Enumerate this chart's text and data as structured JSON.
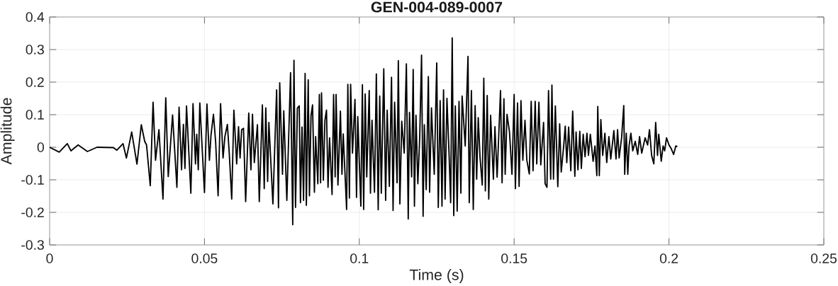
{
  "chart_data": {
    "type": "line",
    "title": "GEN-004-089-0007",
    "xlabel": "Time (s)",
    "ylabel": "Amplitude",
    "color": "#000000",
    "line_style": "solid",
    "grid": true,
    "xlim": [
      0,
      0.25
    ],
    "ylim": [
      -0.3,
      0.4
    ],
    "xticks": [
      0,
      0.05,
      0.1,
      0.15,
      0.2,
      0.25
    ],
    "yticks": [
      -0.3,
      -0.2,
      -0.1,
      0,
      0.1,
      0.2,
      0.3,
      0.4
    ],
    "x": [
      0,
      0.0031,
      0.0057,
      0.0069,
      0.0092,
      0.0122,
      0.0153,
      0.0206,
      0.0217,
      0.0237,
      0.0248,
      0.0265,
      0.0282,
      0.0296,
      0.0307,
      0.0313,
      0.0325,
      0.0334,
      0.0342,
      0.0353,
      0.0366,
      0.0375,
      0.0383,
      0.0397,
      0.0411,
      0.0418,
      0.0426,
      0.0432,
      0.0437,
      0.0442,
      0.0456,
      0.0463,
      0.0471,
      0.0475,
      0.048,
      0.0485,
      0.05,
      0.0508,
      0.0516,
      0.0521,
      0.0529,
      0.0536,
      0.0544,
      0.0552,
      0.056,
      0.0566,
      0.0574,
      0.058,
      0.0588,
      0.0595,
      0.0604,
      0.061,
      0.0615,
      0.062,
      0.0626,
      0.0633,
      0.0643,
      0.065,
      0.0655,
      0.0661,
      0.0671,
      0.0677,
      0.0687,
      0.0693,
      0.0698,
      0.0704,
      0.0708,
      0.0721,
      0.0733,
      0.0739,
      0.0743,
      0.0752,
      0.0756,
      0.0766,
      0.0778,
      0.0785,
      0.0789,
      0.0794,
      0.08,
      0.0806,
      0.081,
      0.0815,
      0.082,
      0.0825,
      0.0829,
      0.0835,
      0.0839,
      0.0844,
      0.0849,
      0.0855,
      0.0859,
      0.0866,
      0.0871,
      0.0875,
      0.0878,
      0.0884,
      0.0889,
      0.0894,
      0.0899,
      0.0904,
      0.0912,
      0.0917,
      0.0922,
      0.0925,
      0.0931,
      0.0939,
      0.0944,
      0.0948,
      0.0959,
      0.0963,
      0.0968,
      0.0972,
      0.0978,
      0.0986,
      0.0991,
      0.0995,
      0.1005,
      0.101,
      0.1014,
      0.1019,
      0.1024,
      0.1032,
      0.1036,
      0.1041,
      0.1049,
      0.1055,
      0.1061,
      0.1066,
      0.1071,
      0.1079,
      0.1085,
      0.109,
      0.1097,
      0.1104,
      0.1109,
      0.1114,
      0.1122,
      0.1126,
      0.1131,
      0.1137,
      0.1145,
      0.1152,
      0.1158,
      0.1162,
      0.1169,
      0.1174,
      0.1178,
      0.1183,
      0.1189,
      0.1195,
      0.1201,
      0.1206,
      0.121,
      0.1216,
      0.1223,
      0.1227,
      0.1233,
      0.1242,
      0.125,
      0.1255,
      0.1261,
      0.1267,
      0.1272,
      0.1277,
      0.1283,
      0.129,
      0.1295,
      0.13,
      0.1305,
      0.131,
      0.1316,
      0.1322,
      0.1328,
      0.1332,
      0.1342,
      0.1351,
      0.1355,
      0.1362,
      0.1368,
      0.1374,
      0.1379,
      0.1384,
      0.139,
      0.1397,
      0.1402,
      0.1407,
      0.1413,
      0.1418,
      0.1424,
      0.1433,
      0.1438,
      0.1445,
      0.1456,
      0.1461,
      0.1467,
      0.1471,
      0.1477,
      0.1485,
      0.1493,
      0.15,
      0.1504,
      0.1511,
      0.1516,
      0.1522,
      0.1528,
      0.1535,
      0.1541,
      0.1549,
      0.1555,
      0.1561,
      0.1568,
      0.1573,
      0.158,
      0.1586,
      0.1595,
      0.16,
      0.1606,
      0.1611,
      0.1618,
      0.1622,
      0.1627,
      0.1633,
      0.1641,
      0.1647,
      0.1652,
      0.166,
      0.1665,
      0.167,
      0.1676,
      0.1683,
      0.1689,
      0.1696,
      0.17,
      0.1706,
      0.1712,
      0.1717,
      0.1723,
      0.1729,
      0.1735,
      0.174,
      0.1746,
      0.1755,
      0.1761,
      0.1767,
      0.177,
      0.1775,
      0.178,
      0.1786,
      0.1793,
      0.1799,
      0.1806,
      0.1812,
      0.1822,
      0.1829,
      0.1834,
      0.1839,
      0.1847,
      0.1854,
      0.1857,
      0.1862,
      0.1867,
      0.1871,
      0.1877,
      0.1883,
      0.1891,
      0.1899,
      0.1905,
      0.1912,
      0.1923,
      0.1931,
      0.1937,
      0.1944,
      0.1951,
      0.1957,
      0.1963,
      0.1967,
      0.1975,
      0.1981,
      0.1986,
      0.1992,
      0.2,
      0.2007,
      0.2015,
      0.2022,
      0.2027
    ],
    "values": [
      0,
      -0.015,
      0.011,
      -0.011,
      0.007,
      -0.013,
      0,
      -0.001,
      -0.009,
      0.011,
      -0.033,
      0.047,
      -0.052,
      0.069,
      0.018,
      0.007,
      -0.118,
      0.138,
      -0.04,
      0.054,
      -0.159,
      0.152,
      -0.09,
      0.099,
      -0.123,
      0.123,
      -0.069,
      0.07,
      -0.065,
      0.127,
      -0.141,
      0.134,
      -0.051,
      0.04,
      -0.069,
      0.136,
      -0.139,
      0.133,
      -0.04,
      0.036,
      0.101,
      0.018,
      -0.149,
      0.134,
      -0.033,
      0.033,
      0.07,
      -0.018,
      -0.159,
      0.114,
      -0.051,
      0.063,
      -0.033,
      0.054,
      0.058,
      -0.167,
      0.105,
      -0.069,
      0.101,
      -0.047,
      0.069,
      -0.167,
      0.13,
      -0.127,
      0.121,
      -0.105,
      0.076,
      -0.174,
      0.176,
      -0.186,
      0.198,
      -0.083,
      0.112,
      -0.163,
      0.229,
      -0.238,
      0.267,
      -0.185,
      0.12,
      0.127,
      -0.17,
      0.062,
      -0.163,
      0.227,
      -0.178,
      0.207,
      -0.149,
      0.096,
      0.13,
      -0.138,
      0.033,
      -0.112,
      0.162,
      -0.109,
      0.167,
      -0.101,
      0.083,
      0.114,
      -0.123,
      0.029,
      -0.145,
      0.162,
      -0.091,
      0.162,
      -0.116,
      0.111,
      -0.083,
      0.041,
      -0.191,
      0.193,
      -0.156,
      0.193,
      -0.018,
      0.147,
      -0.154,
      0.094,
      -0.181,
      0.192,
      -0.191,
      0.164,
      -0.091,
      0.174,
      -0.141,
      0.083,
      -0.138,
      0.225,
      -0.192,
      0.157,
      -0.141,
      0.241,
      -0.163,
      0.114,
      -0.12,
      0.215,
      -0.194,
      0.138,
      -0.109,
      0.266,
      -0.174,
      0.08,
      -0.018,
      0.256,
      -0.22,
      0.107,
      -0.091,
      0.239,
      -0.181,
      0.098,
      -0.112,
      0.029,
      0.283,
      -0.212,
      0.069,
      -0.13,
      0.217,
      -0.138,
      0.121,
      -0.083,
      0.259,
      -0.185,
      0.143,
      -0.181,
      0.176,
      -0.159,
      0.15,
      -0.025,
      -0.17,
      0.336,
      -0.21,
      0.127,
      -0.196,
      0.141,
      -0.141,
      0.157,
      0.004,
      0.279,
      -0.17,
      0.174,
      -0.191,
      0.128,
      -0.098,
      0.091,
      -0.033,
      -0.116,
      0.212,
      -0.134,
      0.159,
      -0.159,
      0.098,
      -0.098,
      0.063,
      -0.092,
      0.174,
      -0.109,
      0.149,
      -0.083,
      0.101,
      0.047,
      -0.083,
      0.162,
      -0.127,
      0.136,
      -0.12,
      0.143,
      -0.04,
      0.083,
      -0.04,
      -0.082,
      0.141,
      -0.072,
      0.141,
      -0.051,
      0.138,
      -0.054,
      0.076,
      -0.112,
      -0.123,
      0.174,
      -0.098,
      0.191,
      -0.098,
      0.127,
      -0.121,
      0.072,
      -0.076,
      0.004,
      0.065,
      -0.047,
      0.062,
      -0.072,
      0.111,
      -0.089,
      0.047,
      -0.069,
      0.049,
      -0.065,
      0.04,
      -0.029,
      0.043,
      -0.025,
      0.04,
      -0.043,
      0.004,
      -0.087,
      0.125,
      -0.087,
      0.085,
      -0.025,
      0.043,
      -0.047,
      0.033,
      -0.036,
      0.051,
      -0.036,
      0.054,
      -0.033,
      0.029,
      0.128,
      -0.083,
      0.043,
      -0.083,
      0.004,
      0.043,
      -0.011,
      0.018,
      -0.022,
      0.033,
      -0.018,
      0.029,
      0.007,
      0.054,
      -0.025,
      -0.051,
      0.076,
      -0.025,
      0.04,
      -0.043,
      0.004,
      -0.011,
      0.029,
      0.007,
      -0.004,
      -0.022,
      0.004,
      0.002
    ]
  }
}
